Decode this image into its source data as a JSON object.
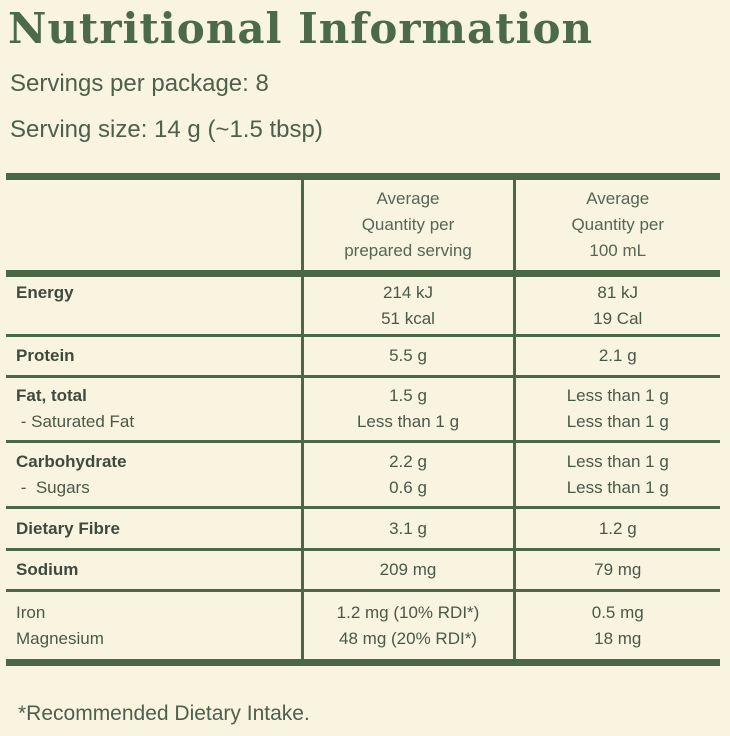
{
  "title": "Nutritional Information",
  "servings_per_package": "Servings per package: 8",
  "serving_size": "Serving size:  14 g  (~1.5 tbsp)",
  "table": {
    "header": {
      "col1": "",
      "col2": [
        "Average",
        "Quantity per",
        "prepared serving"
      ],
      "col3": [
        "Average",
        "Quantity per",
        "100 mL"
      ]
    },
    "rows": [
      {
        "label": "Energy",
        "serving": [
          "214 kJ",
          "51 kcal"
        ],
        "per100": [
          "81 kJ",
          "19 Cal"
        ]
      },
      {
        "label": "Protein",
        "serving": "5.5 g",
        "per100": "2.1 g"
      },
      {
        "label": "Fat, total",
        "sub_label": " - Saturated Fat",
        "serving": [
          "1.5 g",
          "Less than 1 g"
        ],
        "per100": [
          "Less than 1 g",
          "Less than 1 g"
        ]
      },
      {
        "label": "Carbohydrate",
        "sub_label": " -  Sugars",
        "serving": [
          "2.2 g",
          "0.6 g"
        ],
        "per100": [
          "Less than 1 g",
          "Less than 1 g"
        ]
      },
      {
        "label": "Dietary Fibre",
        "serving": "3.1 g",
        "per100": "1.2 g"
      },
      {
        "label": "Sodium",
        "serving": "209 mg",
        "per100": "79 mg"
      },
      {
        "label": "Iron",
        "sub_label": "Magnesium",
        "serving": [
          "1.2 mg (10% RDI*)",
          "48 mg (20% RDI*)"
        ],
        "per100": [
          "0.5 mg",
          "18 mg"
        ]
      }
    ]
  },
  "footnote": "*Recommended Dietary Intake.",
  "colors": {
    "accent": "#4c6a48",
    "background": "#f8f4df"
  }
}
